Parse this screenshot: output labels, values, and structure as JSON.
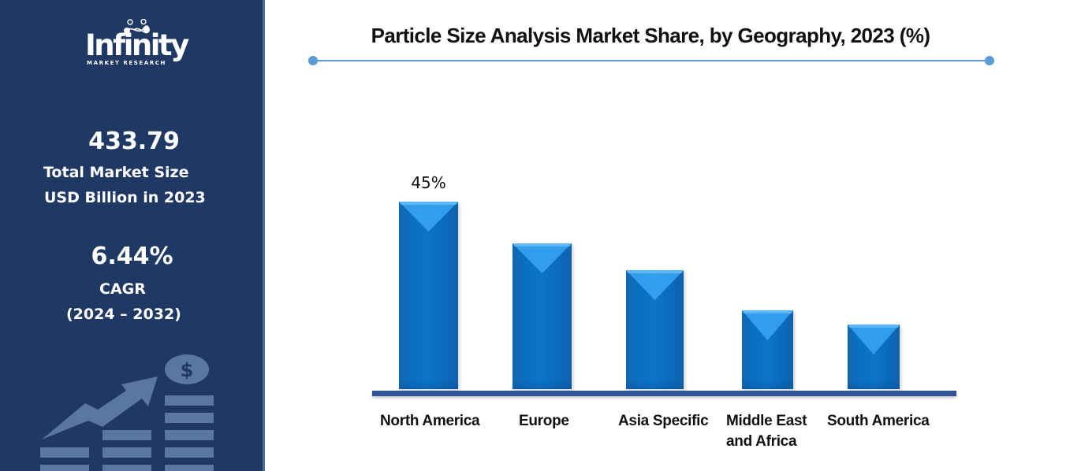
{
  "brand": {
    "name": "Infinity",
    "tagline": "MARKET RESEARCH"
  },
  "stats": {
    "market_size_value": "433.79",
    "market_size_label_line1": "Total Market Size",
    "market_size_label_line2": "USD Billion in 2023",
    "cagr_value": "6.44%",
    "cagr_label": "CAGR",
    "cagr_period": "(2024 – 2032)"
  },
  "decor": {
    "icon": "growth-chart-dollar-icon",
    "dollar_symbol": "$"
  },
  "colors": {
    "panel": "#1f3864",
    "bar": "#0a6fc2",
    "bar_highlight": "#3aa0f0",
    "axis": "#2f5597",
    "accent_rule": "#5b9bd5"
  },
  "chart_data": {
    "type": "bar",
    "title": "Particle Size Analysis Market Share, by Geography, 2023 (%)",
    "xlabel": "",
    "ylabel": "",
    "categories": [
      "North America",
      "Europe",
      "Asia Specific",
      "Middle East\nand Africa",
      "South America"
    ],
    "values": [
      45,
      35,
      28.5,
      19,
      15.5
    ],
    "data_labels": [
      "45%",
      "",
      "",
      "",
      ""
    ],
    "ylim": [
      0,
      50
    ],
    "grid": false,
    "legend": "none"
  }
}
